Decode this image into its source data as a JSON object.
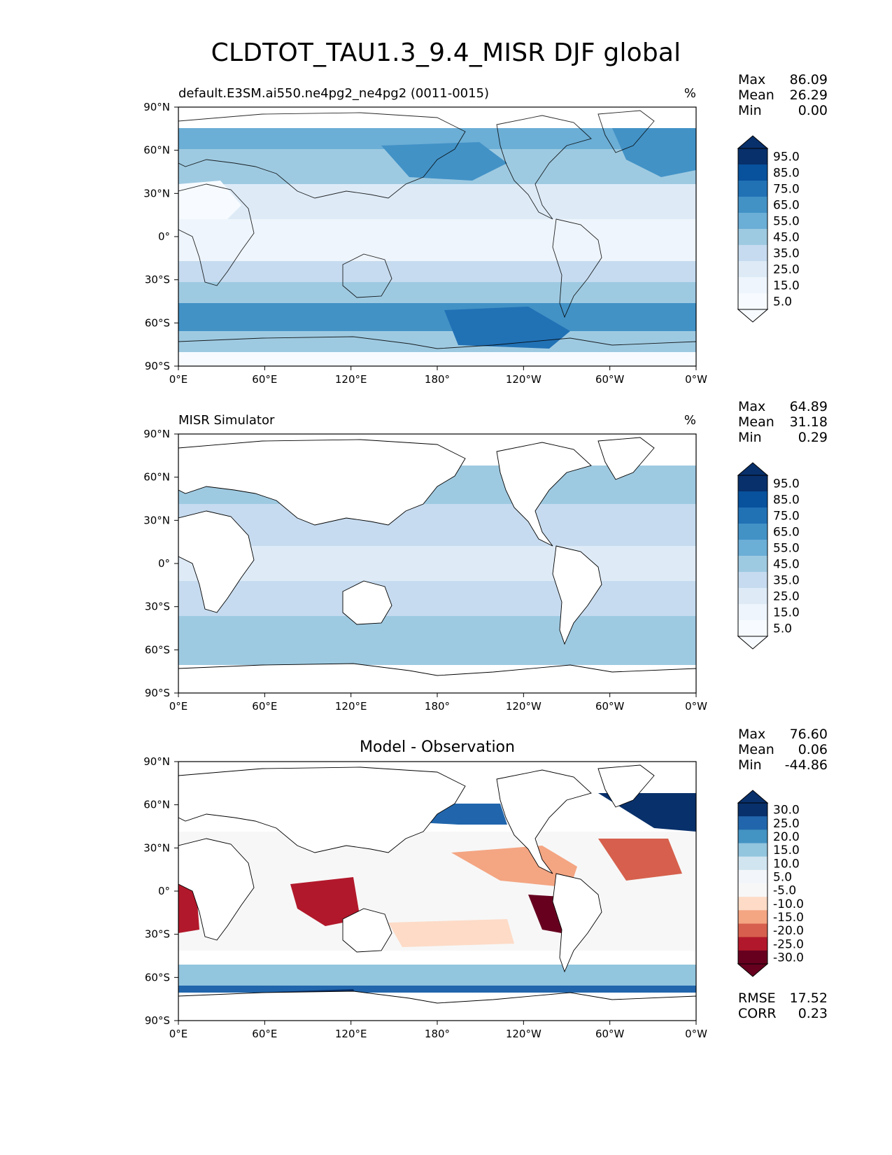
{
  "title": "CLDTOT_TAU1.3_9.4_MISR DJF global",
  "axes": {
    "lat_ticks": [
      "90°N",
      "60°N",
      "30°N",
      "0°",
      "30°S",
      "60°S",
      "90°S"
    ],
    "lon_ticks": [
      "0°E",
      "60°E",
      "120°E",
      "180°",
      "120°W",
      "60°W",
      "0°W"
    ]
  },
  "panels": [
    {
      "title_left": "default.E3SM.ai550.ne4pg2_ne4pg2 (0011-0015)",
      "title_center": "",
      "units": "%",
      "stats": [
        {
          "label": "Max",
          "value": "86.09"
        },
        {
          "label": "Mean",
          "value": "26.29"
        },
        {
          "label": "Min",
          "value": "0.00"
        }
      ],
      "colorbar": {
        "levels": [
          "95.0",
          "85.0",
          "75.0",
          "65.0",
          "55.0",
          "45.0",
          "35.0",
          "25.0",
          "15.0",
          "5.0"
        ],
        "colors": [
          "#08306b",
          "#08519c",
          "#2171b5",
          "#4292c6",
          "#6baed6",
          "#9ecae1",
          "#c6dbef",
          "#deebf7",
          "#eef5fc",
          "#f7fbff"
        ]
      },
      "footer_stats": []
    },
    {
      "title_left": "MISR Simulator",
      "title_center": "",
      "units": "%",
      "stats": [
        {
          "label": "Max",
          "value": "64.89"
        },
        {
          "label": "Mean",
          "value": "31.18"
        },
        {
          "label": "Min",
          "value": "0.29"
        }
      ],
      "colorbar": {
        "levels": [
          "95.0",
          "85.0",
          "75.0",
          "65.0",
          "55.0",
          "45.0",
          "35.0",
          "25.0",
          "15.0",
          "5.0"
        ],
        "colors": [
          "#08306b",
          "#08519c",
          "#2171b5",
          "#4292c6",
          "#6baed6",
          "#9ecae1",
          "#c6dbef",
          "#deebf7",
          "#eef5fc",
          "#f7fbff"
        ]
      },
      "footer_stats": []
    },
    {
      "title_left": "",
      "title_center": "Model - Observation",
      "units": "",
      "stats": [
        {
          "label": "Max",
          "value": "76.60"
        },
        {
          "label": "Mean",
          "value": "0.06"
        },
        {
          "label": "Min",
          "value": "-44.86"
        }
      ],
      "colorbar": {
        "levels": [
          "30.0",
          "25.0",
          "20.0",
          "15.0",
          "10.0",
          "5.0",
          "-5.0",
          "-10.0",
          "-15.0",
          "-20.0",
          "-25.0",
          "-30.0"
        ],
        "colors": [
          "#08306b",
          "#2166ac",
          "#4393c3",
          "#92c5de",
          "#d1e5f0",
          "#f2f6fa",
          "#f7f7f7",
          "#fddbc7",
          "#f4a582",
          "#d6604d",
          "#b2182b",
          "#67001f"
        ]
      },
      "footer_stats": [
        {
          "label": "RMSE",
          "value": "17.52"
        },
        {
          "label": "CORR",
          "value": "0.23"
        }
      ]
    }
  ]
}
